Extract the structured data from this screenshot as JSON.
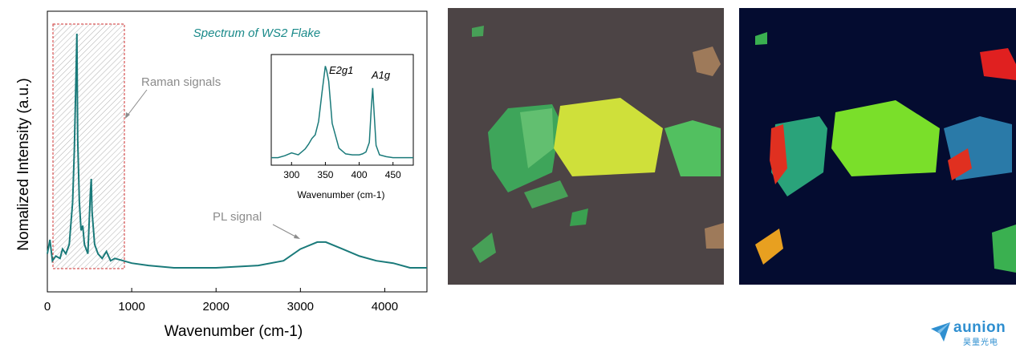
{
  "chart_data": {
    "type": "line",
    "title": "Spectrum of WS2 Flake",
    "xlabel": "Wavenumber (cm-1)",
    "ylabel": "Nomalized Intensity (a.u.)",
    "xlim": [
      0,
      4500
    ],
    "x_ticks": [
      0,
      1000,
      2000,
      3000,
      4000
    ],
    "y_ticks_labeled": false,
    "annotations": [
      "Raman signals",
      "PL signal"
    ],
    "series": [
      {
        "x": [
          0,
          30,
          60,
          100,
          150,
          180,
          220,
          260,
          300,
          320,
          340,
          350,
          360,
          380,
          400,
          420,
          440,
          480,
          510,
          520,
          530,
          560,
          600,
          650,
          700,
          750,
          800,
          900,
          1000,
          1200,
          1500,
          2000,
          2500,
          2800,
          3000,
          3200,
          3300,
          3500,
          3700,
          3900,
          4100,
          4300,
          4500
        ],
        "y": [
          0.06,
          0.12,
          0.03,
          0.05,
          0.04,
          0.08,
          0.06,
          0.1,
          0.28,
          0.5,
          0.82,
          1.0,
          0.55,
          0.28,
          0.16,
          0.18,
          0.1,
          0.06,
          0.32,
          0.38,
          0.24,
          0.1,
          0.06,
          0.04,
          0.07,
          0.03,
          0.04,
          0.03,
          0.02,
          0.01,
          0.0,
          0.0,
          0.01,
          0.03,
          0.08,
          0.11,
          0.11,
          0.08,
          0.05,
          0.03,
          0.02,
          0.0,
          0.0
        ]
      }
    ],
    "inset": {
      "type": "line",
      "xlabel": "Wavenumber (cm-1)",
      "xlim": [
        270,
        480
      ],
      "x_ticks": [
        300,
        350,
        400,
        450
      ],
      "peak_labels": [
        "E2g1",
        "A1g"
      ],
      "x": [
        270,
        280,
        290,
        300,
        310,
        320,
        325,
        330,
        335,
        340,
        345,
        350,
        352,
        355,
        360,
        370,
        380,
        390,
        400,
        405,
        410,
        415,
        418,
        420,
        422,
        425,
        430,
        440,
        450,
        460,
        470,
        480
      ],
      "y": [
        0.02,
        0.02,
        0.04,
        0.07,
        0.05,
        0.11,
        0.16,
        0.22,
        0.26,
        0.4,
        0.7,
        0.98,
        0.93,
        0.82,
        0.38,
        0.12,
        0.06,
        0.05,
        0.05,
        0.06,
        0.08,
        0.18,
        0.55,
        0.75,
        0.5,
        0.15,
        0.05,
        0.03,
        0.02,
        0.02,
        0.02,
        0.02
      ]
    }
  },
  "colors": {
    "line": "#1a7a7a",
    "title": "#1a8a8a",
    "annotation": "#8c8c8c",
    "raman_box": "#d03030",
    "logo": "#2f8fd0"
  },
  "images": {
    "optical": "optical microscope image of WS2 flakes (yellow, green and brown flakes on dark background)",
    "map": "false-color intensity map of the same WS2 flakes (green, yellow, red and blue on dark navy)"
  },
  "logo": {
    "name": "aunion",
    "sub": "昊量光电"
  }
}
